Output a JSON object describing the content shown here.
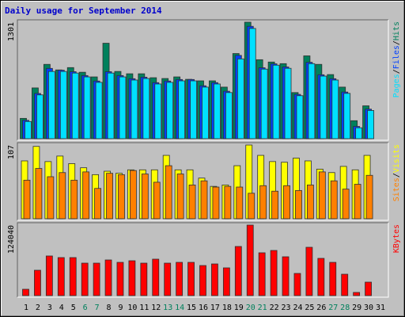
{
  "chart_data": [
    {
      "type": "bar",
      "title": "Daily usage for September 2014",
      "legend_separator": "/",
      "series": [
        {
          "name": "Hits",
          "color": "#00805c",
          "values": [
            227,
            567,
            830,
            768,
            794,
            742,
            690,
            1066,
            751,
            725,
            725,
            681,
            672,
            690,
            663,
            646,
            646,
            576,
            951,
            1301,
            882,
            856,
            838,
            515,
            925,
            830,
            716,
            576,
            201,
            367,
            0
          ]
        },
        {
          "name": "Files",
          "color": "#0040ff",
          "values": [
            205,
            505,
            785,
            765,
            748,
            705,
            644,
            748,
            705,
            670,
            687,
            626,
            644,
            661,
            661,
            591,
            626,
            530,
            930,
            1255,
            792,
            836,
            801,
            495,
            853,
            714,
            670,
            521,
            137,
            330,
            0
          ]
        },
        {
          "name": "Pages",
          "color": "#00e0ff",
          "values": [
            192,
            489,
            751,
            751,
            733,
            690,
            629,
            733,
            690,
            655,
            672,
            611,
            629,
            646,
            646,
            576,
            611,
            515,
            891,
            1231,
            777,
            821,
            786,
            480,
            838,
            699,
            655,
            506,
            122,
            315,
            0
          ]
        }
      ],
      "ylim": [
        0,
        1301
      ],
      "yticks": [
        1301
      ]
    },
    {
      "type": "bar",
      "series": [
        {
          "name": "Visits",
          "color": "#ffff00",
          "values": [
            84,
            105,
            83,
            91,
            80,
            74,
            64,
            69,
            66,
            71,
            71,
            71,
            92,
            71,
            71,
            59,
            47,
            49,
            77,
            107,
            92,
            83,
            82,
            88,
            84,
            72,
            67,
            76,
            71,
            92,
            0
          ]
        },
        {
          "name": "Sites",
          "color": "#ff8000",
          "values": [
            56,
            73,
            61,
            67,
            56,
            68,
            44,
            66,
            64,
            70,
            65,
            53,
            77,
            65,
            49,
            55,
            46,
            47,
            46,
            37,
            48,
            40,
            48,
            41,
            49,
            68,
            55,
            43,
            50,
            63,
            0
          ]
        }
      ],
      "ylim": [
        0,
        107
      ],
      "yticks": [
        107
      ]
    },
    {
      "type": "bar",
      "categories": [
        "1",
        "2",
        "3",
        "4",
        "5",
        "6",
        "7",
        "8",
        "9",
        "10",
        "11",
        "12",
        "13",
        "14",
        "15",
        "16",
        "17",
        "18",
        "19",
        "20",
        "21",
        "22",
        "23",
        "24",
        "25",
        "26",
        "27",
        "28",
        "29",
        "30",
        "31"
      ],
      "category_colors": [
        "#000000",
        "#000000",
        "#000000",
        "#000000",
        "#000000",
        "#00805c",
        "#00805c",
        "#000000",
        "#000000",
        "#000000",
        "#000000",
        "#000000",
        "#00805c",
        "#00805c",
        "#000000",
        "#000000",
        "#000000",
        "#000000",
        "#000000",
        "#00805c",
        "#00805c",
        "#000000",
        "#000000",
        "#000000",
        "#000000",
        "#000000",
        "#00805c",
        "#00805c",
        "#000000",
        "#000000",
        "#000000"
      ],
      "series": [
        {
          "name": "KBytes",
          "color": "#ff0000",
          "values": [
            11160,
            44600,
            69700,
            66900,
            66900,
            57100,
            57100,
            62700,
            58500,
            61300,
            57100,
            64100,
            57100,
            58500,
            58500,
            52900,
            55700,
            48800,
            86400,
            124040,
            75300,
            79400,
            68300,
            39000,
            85000,
            65500,
            58500,
            37600,
            5600,
            23700,
            0
          ]
        }
      ],
      "ylim": [
        0,
        124040
      ],
      "yticks": [
        124040
      ]
    }
  ]
}
